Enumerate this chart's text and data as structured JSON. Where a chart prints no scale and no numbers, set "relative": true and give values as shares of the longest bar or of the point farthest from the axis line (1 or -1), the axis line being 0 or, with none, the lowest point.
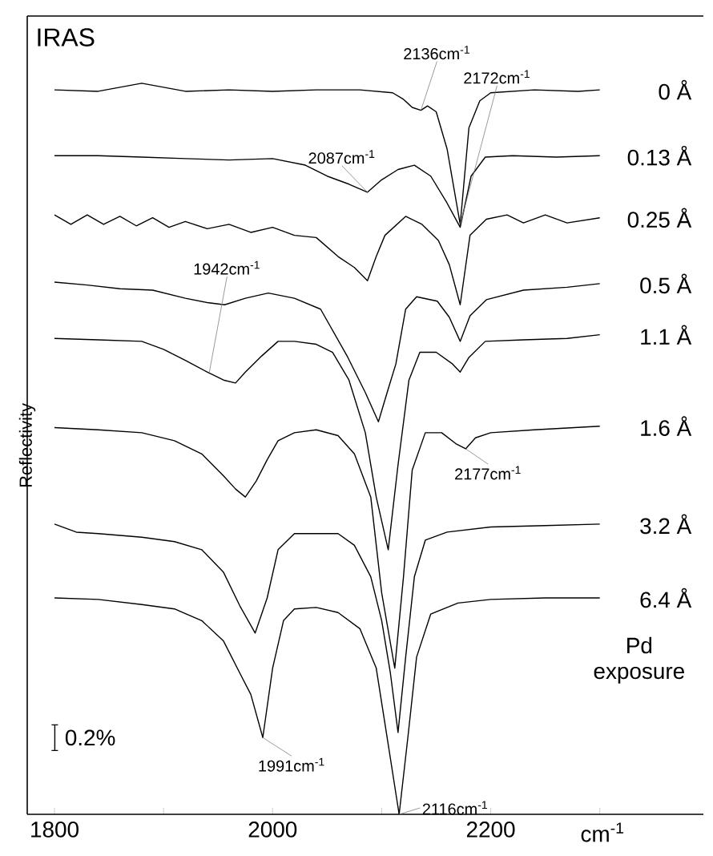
{
  "chart_data": {
    "type": "line",
    "relative": true,
    "title": "IRAS",
    "xlabel": "cm$^{-1}$",
    "ylabel": "Reflectivity",
    "xlim": [
      1775,
      2395
    ],
    "xticks": [
      1800,
      {
        "value": 1900,
        "label": null
      },
      2000,
      {
        "value": 2100,
        "label": null
      },
      2200,
      {
        "value": 2300,
        "label": null
      }
    ],
    "grid": false,
    "marker": "none",
    "line_style": "solid",
    "series": [
      {
        "name": "0 Å",
        "color": "#000000",
        "x": [
          1800,
          1840,
          1880,
          1920,
          1960,
          2000,
          2040,
          2080,
          2110,
          2120,
          2128,
          2136,
          2142,
          2150,
          2160,
          2172,
          2180,
          2190,
          2200,
          2240,
          2280,
          2300
        ],
        "values": [
          0.991,
          0.989,
          1.0,
          0.989,
          0.991,
          0.989,
          0.991,
          0.991,
          0.987,
          0.978,
          0.967,
          0.963,
          0.969,
          0.961,
          0.91,
          0.807,
          0.939,
          0.976,
          0.987,
          0.991,
          0.989,
          0.991
        ]
      },
      {
        "name": "0.13 Å",
        "color": "#000000",
        "x": [
          1800,
          1840,
          1880,
          1920,
          1960,
          2000,
          2030,
          2050,
          2070,
          2087,
          2100,
          2115,
          2130,
          2145,
          2160,
          2172,
          2182,
          2195,
          2220,
          2260,
          2300
        ],
        "values": [
          0.901,
          0.901,
          0.899,
          0.897,
          0.895,
          0.897,
          0.888,
          0.873,
          0.862,
          0.851,
          0.868,
          0.882,
          0.888,
          0.873,
          0.836,
          0.803,
          0.873,
          0.899,
          0.901,
          0.899,
          0.901
        ]
      },
      {
        "name": "0.25 Å",
        "color": "#000000",
        "x": [
          1800,
          1815,
          1830,
          1845,
          1860,
          1875,
          1890,
          1905,
          1920,
          1940,
          1960,
          1980,
          2000,
          2020,
          2040,
          2060,
          2075,
          2087,
          2095,
          2103,
          2122,
          2137,
          2152,
          2162,
          2172,
          2181,
          2196,
          2215,
          2230,
          2250,
          2270,
          2300
        ],
        "values": [
          0.82,
          0.807,
          0.82,
          0.807,
          0.818,
          0.805,
          0.816,
          0.803,
          0.811,
          0.801,
          0.807,
          0.796,
          0.803,
          0.792,
          0.789,
          0.763,
          0.748,
          0.73,
          0.763,
          0.792,
          0.818,
          0.807,
          0.785,
          0.752,
          0.697,
          0.792,
          0.814,
          0.82,
          0.809,
          0.82,
          0.809,
          0.816
        ]
      },
      {
        "name": "0.5 Å",
        "color": "#000000",
        "x": [
          1800,
          1830,
          1860,
          1890,
          1920,
          1940,
          1956,
          1975,
          1996,
          2020,
          2044,
          2069,
          2085,
          2097,
          2105,
          2113,
          2122,
          2132,
          2151,
          2162,
          2172,
          2181,
          2196,
          2230,
          2270,
          2300
        ],
        "values": [
          0.728,
          0.724,
          0.719,
          0.717,
          0.706,
          0.7,
          0.697,
          0.706,
          0.713,
          0.706,
          0.691,
          0.625,
          0.577,
          0.537,
          0.577,
          0.616,
          0.691,
          0.708,
          0.702,
          0.68,
          0.647,
          0.682,
          0.704,
          0.717,
          0.721,
          0.726
        ]
      },
      {
        "name": "1.1 Å",
        "color": "#000000",
        "x": [
          1800,
          1840,
          1880,
          1900,
          1920,
          1940,
          1955,
          1966,
          1975,
          1990,
          2005,
          2020,
          2040,
          2055,
          2070,
          2085,
          2095,
          2106,
          2115,
          2125,
          2135,
          2150,
          2165,
          2172,
          2180,
          2195,
          2230,
          2270,
          2300
        ],
        "values": [
          0.651,
          0.649,
          0.647,
          0.636,
          0.621,
          0.605,
          0.594,
          0.59,
          0.605,
          0.627,
          0.647,
          0.647,
          0.643,
          0.632,
          0.594,
          0.522,
          0.434,
          0.362,
          0.478,
          0.594,
          0.632,
          0.632,
          0.616,
          0.605,
          0.625,
          0.647,
          0.649,
          0.651,
          0.656
        ]
      },
      {
        "name": "1.6 Å",
        "color": "#000000",
        "x": [
          1800,
          1840,
          1880,
          1910,
          1935,
          1955,
          1966,
          1975,
          1985,
          1995,
          2005,
          2020,
          2040,
          2060,
          2075,
          2090,
          2100,
          2112,
          2120,
          2128,
          2140,
          2155,
          2168,
          2177,
          2186,
          2200,
          2240,
          2300
        ],
        "values": [
          0.529,
          0.526,
          0.522,
          0.511,
          0.493,
          0.463,
          0.445,
          0.434,
          0.456,
          0.485,
          0.511,
          0.522,
          0.526,
          0.518,
          0.493,
          0.434,
          0.303,
          0.2,
          0.325,
          0.471,
          0.522,
          0.522,
          0.507,
          0.5,
          0.515,
          0.522,
          0.526,
          0.531
        ]
      },
      {
        "name": "3.2 Å",
        "color": "#000000",
        "x": [
          1800,
          1820,
          1840,
          1880,
          1910,
          1935,
          1955,
          1970,
          1984,
          1995,
          2005,
          2020,
          2040,
          2060,
          2075,
          2090,
          2100,
          2108,
          2115,
          2122,
          2130,
          2140,
          2160,
          2200,
          2250,
          2300
        ],
        "values": [
          0.397,
          0.386,
          0.384,
          0.379,
          0.373,
          0.362,
          0.331,
          0.285,
          0.248,
          0.296,
          0.362,
          0.384,
          0.384,
          0.384,
          0.368,
          0.325,
          0.265,
          0.193,
          0.112,
          0.215,
          0.325,
          0.375,
          0.386,
          0.393,
          0.395,
          0.397
        ]
      },
      {
        "name": "6.4 Å",
        "color": "#000000",
        "x": [
          1800,
          1840,
          1880,
          1910,
          1935,
          1955,
          1970,
          1980,
          1991,
          2000,
          2010,
          2020,
          2040,
          2060,
          2080,
          2095,
          2105,
          2116,
          2124,
          2132,
          2145,
          2170,
          2200,
          2250,
          2300
        ],
        "values": [
          0.296,
          0.294,
          0.287,
          0.281,
          0.265,
          0.237,
          0.193,
          0.164,
          0.105,
          0.2,
          0.265,
          0.281,
          0.283,
          0.276,
          0.254,
          0.2,
          0.105,
          0.0,
          0.105,
          0.215,
          0.274,
          0.289,
          0.294,
          0.296,
          0.296
        ]
      }
    ],
    "annotations": [
      {
        "text": "2136cm$^{-1}$",
        "x": 2136,
        "y": 0.963
      },
      {
        "text": "2172cm$^{-1}$",
        "x": 2172,
        "y": 0.807
      },
      {
        "text": "2087cm$^{-1}$",
        "x": 2087,
        "y": 0.851
      },
      {
        "text": "1942cm$^{-1}$",
        "x": 1942,
        "y": 0.605
      },
      {
        "text": "2177cm$^{-1}$",
        "x": 2177,
        "y": 0.5
      },
      {
        "text": "1991cm$^{-1}$",
        "x": 1991,
        "y": 0.105
      },
      {
        "text": "2116cm$^{-1}$",
        "x": 2116,
        "y": 0.0
      },
      "Pd exposure",
      "0.2%"
    ]
  }
}
